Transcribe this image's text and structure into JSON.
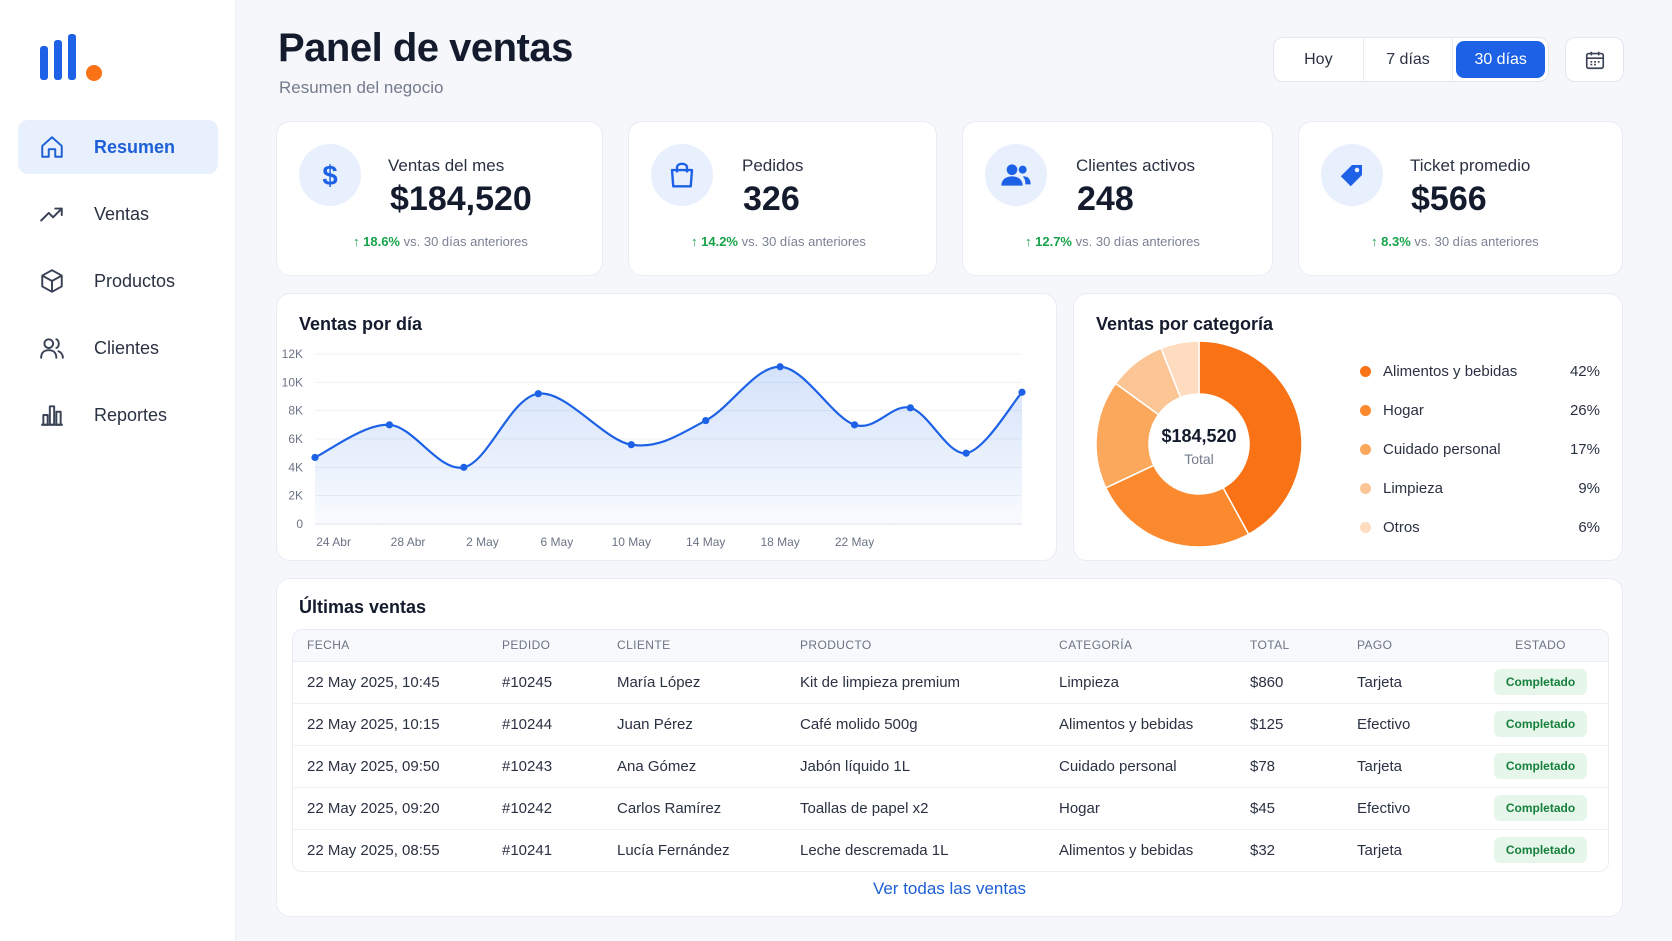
{
  "colors": {
    "primary": "#1d62e6",
    "accent_orange": "#f97316",
    "positive": "#17a34a",
    "status_bg": "#e6f6ea"
  },
  "sidebar": {
    "items": [
      {
        "label": "Resumen",
        "icon": "home-icon",
        "active": true
      },
      {
        "label": "Ventas",
        "icon": "trend-up-icon",
        "active": false
      },
      {
        "label": "Productos",
        "icon": "box-icon",
        "active": false
      },
      {
        "label": "Clientes",
        "icon": "users-icon",
        "active": false
      },
      {
        "label": "Reportes",
        "icon": "bar-chart-icon",
        "active": false
      }
    ]
  },
  "header": {
    "title": "Panel de ventas",
    "subtitle": "Resumen del negocio",
    "ranges": [
      "Hoy",
      "7 días",
      "30 días"
    ],
    "active_range": "30 días"
  },
  "kpis": [
    {
      "label": "Ventas del mes",
      "value": "$184,520",
      "delta": "18.6%",
      "compare": "vs. 30 días anteriores",
      "icon": "dollar-icon"
    },
    {
      "label": "Pedidos",
      "value": "326",
      "delta": "14.2%",
      "compare": "vs. 30 días anteriores",
      "icon": "shopping-bag-icon"
    },
    {
      "label": "Clientes activos",
      "value": "248",
      "delta": "12.7%",
      "compare": "vs. 30 días anteriores",
      "icon": "users-icon"
    },
    {
      "label": "Ticket promedio",
      "value": "$566",
      "delta": "8.3%",
      "compare": "vs. 30 días anteriores",
      "icon": "tag-icon"
    }
  ],
  "chart_data": [
    {
      "type": "area",
      "title": "Ventas por día",
      "x_ticks": [
        "24 Abr",
        "28 Abr",
        "2 May",
        "6 May",
        "10 May",
        "14 May",
        "18 May",
        "22 May"
      ],
      "y_ticks": [
        "0",
        "2K",
        "4K",
        "6K",
        "8K",
        "10K",
        "12K"
      ],
      "ylim": [
        0,
        12000
      ],
      "grid": true,
      "points": [
        {
          "x": "2025-04-23",
          "y": 4700
        },
        {
          "x": "2025-04-27",
          "y": 7000
        },
        {
          "x": "2025-05-01",
          "y": 4000
        },
        {
          "x": "2025-05-05",
          "y": 9200
        },
        {
          "x": "2025-05-10",
          "y": 5600
        },
        {
          "x": "2025-05-14",
          "y": 7300
        },
        {
          "x": "2025-05-18",
          "y": 11100
        },
        {
          "x": "2025-05-22",
          "y": 7000
        },
        {
          "x": "2025-05-25",
          "y": 8200
        },
        {
          "x": "2025-05-28",
          "y": 5000
        },
        {
          "x": "2025-05-31",
          "y": 9300
        }
      ]
    },
    {
      "type": "pie",
      "title": "Ventas por categoría",
      "center_value": "$184,520",
      "center_label": "Total",
      "slices": [
        {
          "label": "Alimentos y bebidas",
          "pct": "42%",
          "value": 42,
          "color": "#f97316"
        },
        {
          "label": "Hogar",
          "pct": "26%",
          "value": 26,
          "color": "#fb8a2e"
        },
        {
          "label": "Cuidado personal",
          "pct": "17%",
          "value": 17,
          "color": "#fba85c"
        },
        {
          "label": "Limpieza",
          "pct": "9%",
          "value": 9,
          "color": "#fcc595"
        },
        {
          "label": "Otros",
          "pct": "6%",
          "value": 6,
          "color": "#fddcc0"
        }
      ]
    }
  ],
  "sales_table": {
    "title": "Últimas ventas",
    "columns": [
      "FECHA",
      "PEDIDO",
      "CLIENTE",
      "PRODUCTO",
      "CATEGORÍA",
      "TOTAL",
      "PAGO",
      "ESTADO"
    ],
    "rows": [
      [
        "22 May 2025, 10:45",
        "#10245",
        "María López",
        "Kit de limpieza premium",
        "Limpieza",
        "$860",
        "Tarjeta",
        "Completado"
      ],
      [
        "22 May 2025, 10:15",
        "#10244",
        "Juan Pérez",
        "Café molido 500g",
        "Alimentos y bebidas",
        "$125",
        "Efectivo",
        "Completado"
      ],
      [
        "22 May 2025, 09:50",
        "#10243",
        "Ana Gómez",
        "Jabón líquido 1L",
        "Cuidado personal",
        "$78",
        "Tarjeta",
        "Completado"
      ],
      [
        "22 May 2025, 09:20",
        "#10242",
        "Carlos Ramírez",
        "Toallas de papel x2",
        "Hogar",
        "$45",
        "Efectivo",
        "Completado"
      ],
      [
        "22 May 2025, 08:55",
        "#10241",
        "Lucía Fernández",
        "Leche descremada 1L",
        "Alimentos y bebidas",
        "$32",
        "Tarjeta",
        "Completado"
      ]
    ],
    "view_all": "Ver todas las ventas"
  }
}
